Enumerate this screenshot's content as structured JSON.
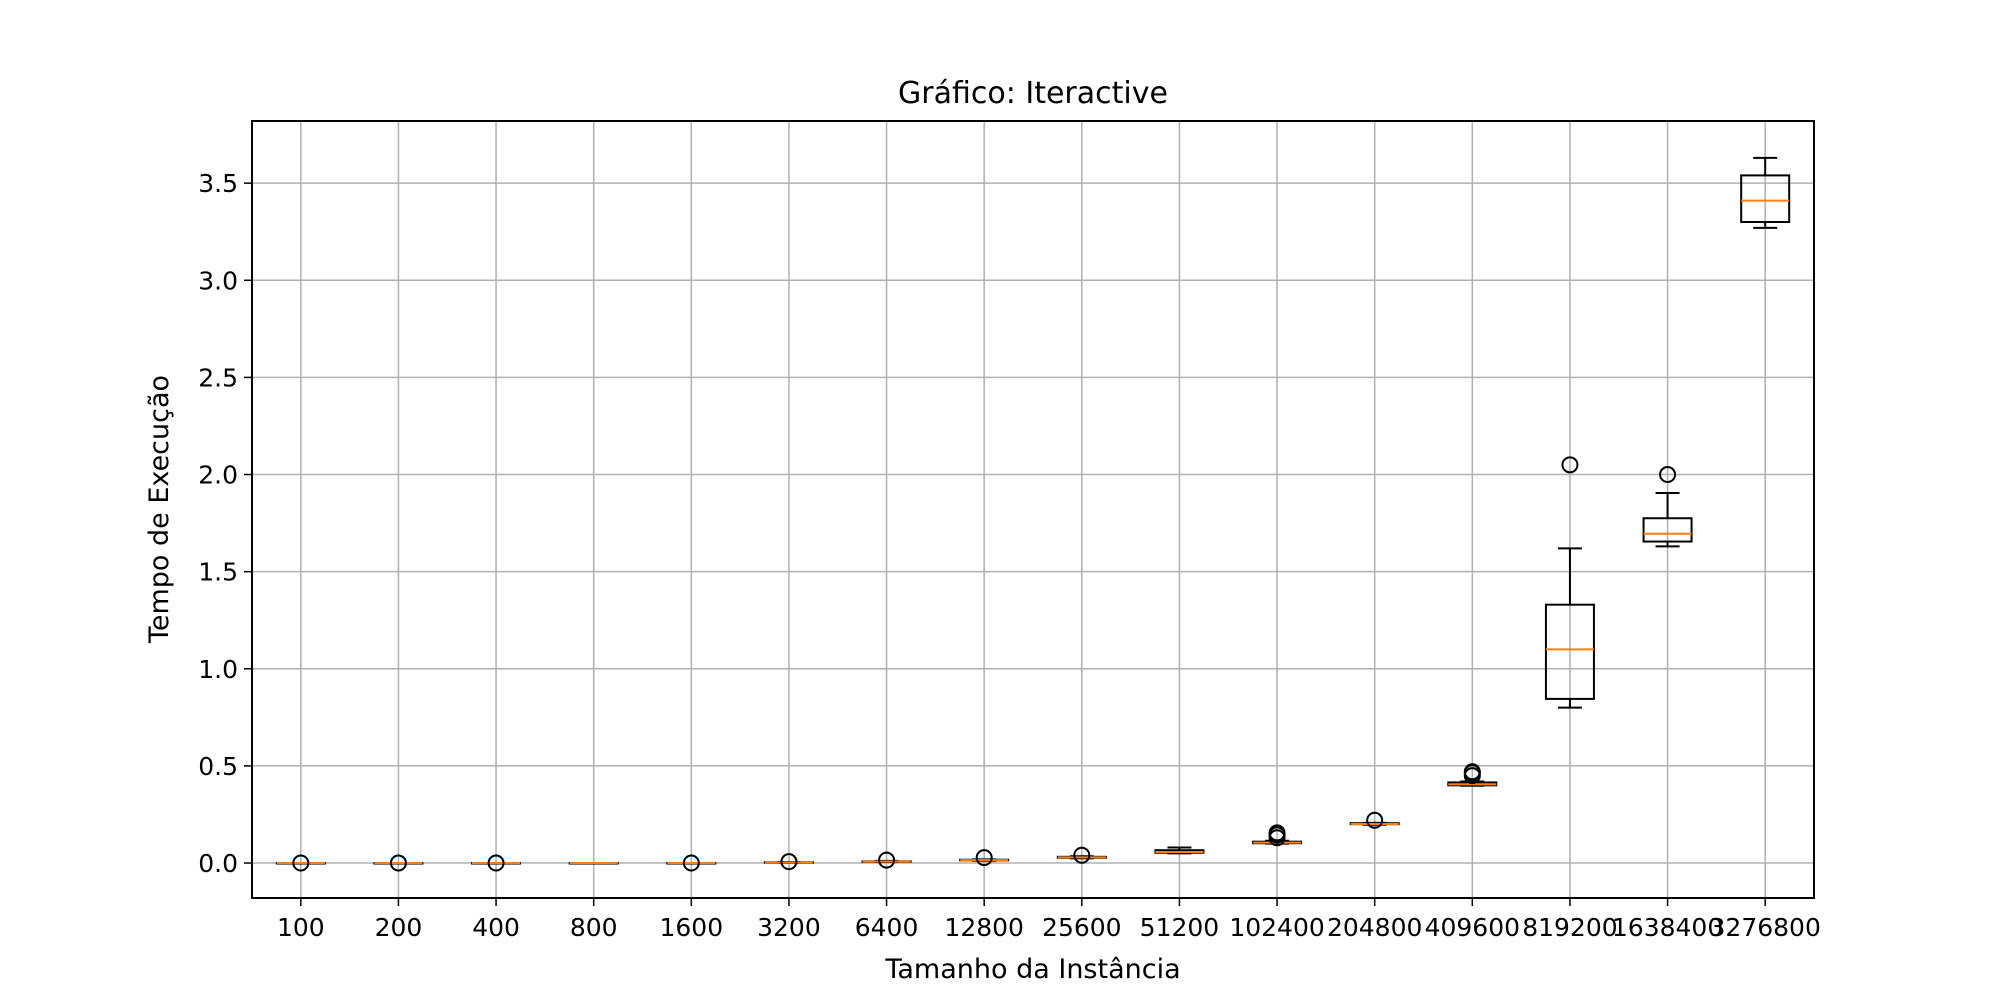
{
  "chart_data": {
    "type": "box",
    "title": "Gráfico: Iteractive",
    "xlabel": "Tamanho da Instância",
    "ylabel": "Tempo de Execução",
    "ylim": [
      -0.18,
      3.82
    ],
    "yticks": [
      0.0,
      0.5,
      1.0,
      1.5,
      2.0,
      2.5,
      3.0,
      3.5
    ],
    "ytick_labels": [
      "0.0",
      "0.5",
      "1.0",
      "1.5",
      "2.0",
      "2.5",
      "3.0",
      "3.5"
    ],
    "grid": true,
    "colors": {
      "box": "#000000",
      "median": "#ff7f0e",
      "grid": "#b0b0b0"
    },
    "categories": [
      "100",
      "200",
      "400",
      "800",
      "1600",
      "3200",
      "6400",
      "12800",
      "25600",
      "51200",
      "102400",
      "204800",
      "409600",
      "819200",
      "1638400",
      "3276800"
    ],
    "boxes": [
      {
        "category": "100",
        "whisker_low": 0.0,
        "q1": 0.0,
        "median": 0.0,
        "q3": 0.0,
        "whisker_high": 0.0,
        "outliers": [
          0.0
        ]
      },
      {
        "category": "200",
        "whisker_low": 0.0,
        "q1": 0.0,
        "median": 0.0,
        "q3": 0.0,
        "whisker_high": 0.0,
        "outliers": [
          0.0
        ]
      },
      {
        "category": "400",
        "whisker_low": 0.0,
        "q1": 0.0,
        "median": 0.0,
        "q3": 0.0,
        "whisker_high": 0.0,
        "outliers": [
          0.0
        ]
      },
      {
        "category": "800",
        "whisker_low": 0.0,
        "q1": 0.0,
        "median": 0.0,
        "q3": 0.0,
        "whisker_high": 0.0,
        "outliers": []
      },
      {
        "category": "1600",
        "whisker_low": 0.0,
        "q1": 0.0,
        "median": 0.0,
        "q3": 0.0,
        "whisker_high": 0.0,
        "outliers": [
          0.0
        ]
      },
      {
        "category": "3200",
        "whisker_low": 0.002,
        "q1": 0.003,
        "median": 0.003,
        "q3": 0.004,
        "whisker_high": 0.005,
        "outliers": [
          0.007
        ]
      },
      {
        "category": "6400",
        "whisker_low": 0.006,
        "q1": 0.007,
        "median": 0.008,
        "q3": 0.009,
        "whisker_high": 0.011,
        "outliers": [
          0.015
        ]
      },
      {
        "category": "12800",
        "whisker_low": 0.012,
        "q1": 0.014,
        "median": 0.015,
        "q3": 0.017,
        "whisker_high": 0.019,
        "outliers": [
          0.028
        ]
      },
      {
        "category": "25600",
        "whisker_low": 0.024,
        "q1": 0.027,
        "median": 0.029,
        "q3": 0.032,
        "whisker_high": 0.035,
        "outliers": [
          0.04
        ]
      },
      {
        "category": "51200",
        "whisker_low": 0.05,
        "q1": 0.053,
        "median": 0.057,
        "q3": 0.066,
        "whisker_high": 0.08,
        "outliers": []
      },
      {
        "category": "102400",
        "whisker_low": 0.1,
        "q1": 0.102,
        "median": 0.105,
        "q3": 0.11,
        "whisker_high": 0.115,
        "outliers": [
          0.13,
          0.145,
          0.155
        ]
      },
      {
        "category": "204800",
        "whisker_low": 0.197,
        "q1": 0.2,
        "median": 0.201,
        "q3": 0.205,
        "whisker_high": 0.207,
        "outliers": [
          0.22
        ]
      },
      {
        "category": "409600",
        "whisker_low": 0.398,
        "q1": 0.4,
        "median": 0.405,
        "q3": 0.415,
        "whisker_high": 0.42,
        "outliers": [
          0.45,
          0.465,
          0.47
        ]
      },
      {
        "category": "819200",
        "whisker_low": 0.8,
        "q1": 0.845,
        "median": 1.1,
        "q3": 1.33,
        "whisker_high": 1.62,
        "outliers": [
          2.05
        ]
      },
      {
        "category": "1638400",
        "whisker_low": 1.63,
        "q1": 1.655,
        "median": 1.695,
        "q3": 1.775,
        "whisker_high": 1.905,
        "outliers": [
          2.0
        ]
      },
      {
        "category": "3276800",
        "whisker_low": 3.27,
        "q1": 3.3,
        "median": 3.41,
        "q3": 3.54,
        "whisker_high": 3.63,
        "outliers": []
      }
    ]
  }
}
